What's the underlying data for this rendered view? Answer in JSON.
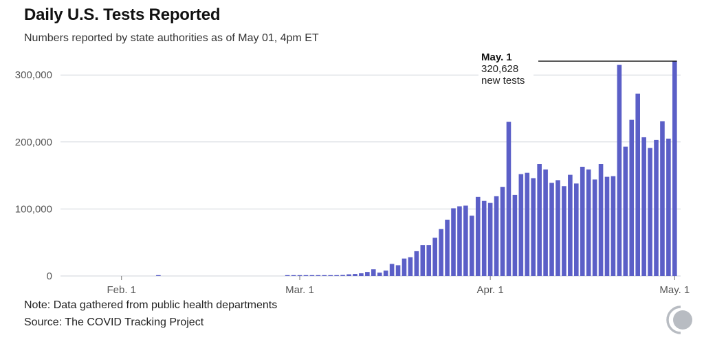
{
  "header": {
    "title": "Daily U.S. Tests Reported",
    "subtitle": "Numbers reported by state authorities as of May 01, 4pm ET"
  },
  "footer": {
    "note": "Note: Data gathered from public health departments",
    "source": "Source: The COVID Tracking Project"
  },
  "logo": {
    "icon": "covid-tracking-project-logo-icon",
    "color": "#b8bcc2"
  },
  "chart_data": {
    "type": "bar",
    "title": "Daily U.S. Tests Reported",
    "subtitle": "Numbers reported by state authorities as of May 01, 4pm ET",
    "xlabel": "",
    "ylabel": "",
    "ylim": [
      0,
      330000
    ],
    "grid": true,
    "bar_color": "#5b5fc7",
    "x_start_date": "2020-01-22",
    "x_end_date": "2020-05-01",
    "yticks": [
      {
        "value": 0,
        "label": "0"
      },
      {
        "value": 100000,
        "label": "100,000"
      },
      {
        "value": 200000,
        "label": "200,000"
      },
      {
        "value": 300000,
        "label": "300,000"
      }
    ],
    "xticks": [
      {
        "date": "2020-02-01",
        "label": "Feb. 1"
      },
      {
        "date": "2020-03-01",
        "label": "Mar. 1"
      },
      {
        "date": "2020-04-01",
        "label": "Apr. 1"
      },
      {
        "date": "2020-05-01",
        "label": "May. 1"
      }
    ],
    "categories": [
      "2020-01-22",
      "2020-01-23",
      "2020-01-24",
      "2020-01-25",
      "2020-01-26",
      "2020-01-27",
      "2020-01-28",
      "2020-01-29",
      "2020-01-30",
      "2020-01-31",
      "2020-02-01",
      "2020-02-02",
      "2020-02-03",
      "2020-02-04",
      "2020-02-05",
      "2020-02-06",
      "2020-02-07",
      "2020-02-08",
      "2020-02-09",
      "2020-02-10",
      "2020-02-11",
      "2020-02-12",
      "2020-02-13",
      "2020-02-14",
      "2020-02-15",
      "2020-02-16",
      "2020-02-17",
      "2020-02-18",
      "2020-02-19",
      "2020-02-20",
      "2020-02-21",
      "2020-02-22",
      "2020-02-23",
      "2020-02-24",
      "2020-02-25",
      "2020-02-26",
      "2020-02-27",
      "2020-02-28",
      "2020-02-29",
      "2020-03-01",
      "2020-03-02",
      "2020-03-03",
      "2020-03-04",
      "2020-03-05",
      "2020-03-06",
      "2020-03-07",
      "2020-03-08",
      "2020-03-09",
      "2020-03-10",
      "2020-03-11",
      "2020-03-12",
      "2020-03-13",
      "2020-03-14",
      "2020-03-15",
      "2020-03-16",
      "2020-03-17",
      "2020-03-18",
      "2020-03-19",
      "2020-03-20",
      "2020-03-21",
      "2020-03-22",
      "2020-03-23",
      "2020-03-24",
      "2020-03-25",
      "2020-03-26",
      "2020-03-27",
      "2020-03-28",
      "2020-03-29",
      "2020-03-30",
      "2020-03-31",
      "2020-04-01",
      "2020-04-02",
      "2020-04-03",
      "2020-04-04",
      "2020-04-05",
      "2020-04-06",
      "2020-04-07",
      "2020-04-08",
      "2020-04-09",
      "2020-04-10",
      "2020-04-11",
      "2020-04-12",
      "2020-04-13",
      "2020-04-14",
      "2020-04-15",
      "2020-04-16",
      "2020-04-17",
      "2020-04-18",
      "2020-04-19",
      "2020-04-20",
      "2020-04-21",
      "2020-04-22",
      "2020-04-23",
      "2020-04-24",
      "2020-04-25",
      "2020-04-26",
      "2020-04-27",
      "2020-04-28",
      "2020-04-29",
      "2020-04-30",
      "2020-05-01"
    ],
    "values": [
      0,
      0,
      0,
      0,
      0,
      0,
      0,
      0,
      0,
      0,
      0,
      0,
      0,
      0,
      0,
      0,
      1000,
      0,
      0,
      0,
      0,
      0,
      0,
      0,
      0,
      0,
      0,
      0,
      0,
      0,
      0,
      0,
      0,
      0,
      0,
      0,
      0,
      800,
      800,
      800,
      900,
      1000,
      1000,
      1000,
      1200,
      1200,
      1500,
      2500,
      3000,
      4000,
      6000,
      10000,
      5000,
      8000,
      18000,
      16000,
      26000,
      28000,
      37000,
      46000,
      46000,
      57000,
      70000,
      84000,
      101000,
      104000,
      105000,
      90000,
      118000,
      112000,
      109000,
      119000,
      133000,
      230000,
      121000,
      152000,
      154000,
      146000,
      167000,
      159000,
      139000,
      143000,
      134000,
      151000,
      138000,
      163000,
      159000,
      144000,
      167000,
      148000,
      149000,
      315000,
      193000,
      233000,
      272000,
      207000,
      191000,
      203000,
      231000,
      205000,
      320628
    ],
    "annotations": [
      {
        "date": "2020-05-01",
        "title": "May. 1",
        "value_text": "320,628",
        "caption": "new tests"
      }
    ]
  }
}
